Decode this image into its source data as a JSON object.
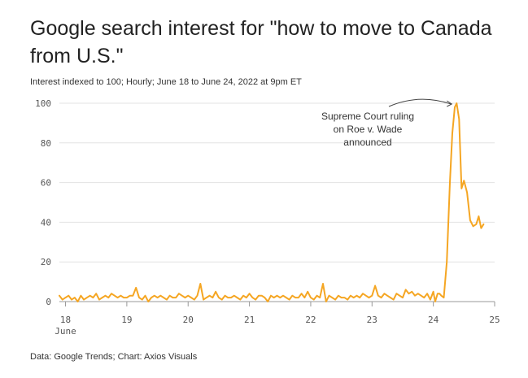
{
  "header": {
    "title": "Google search interest for \"how to move to Canada from U.S.\"",
    "subtitle": "Interest indexed to 100; Hourly; June 18 to June 24, 2022 at 9pm ET"
  },
  "footer": {
    "source": "Data: Google Trends; Chart: Axios Visuals"
  },
  "colors": {
    "line": "#f5a623",
    "grid": "#e3e3e3",
    "axis": "#999999"
  },
  "chart_data": {
    "type": "line",
    "title": "Google search interest for \"how to move to Canada from U.S.\"",
    "subtitle": "Interest indexed to 100; Hourly; June 18 to June 24, 2022 at 9pm ET",
    "xlabel": "",
    "ylabel": "",
    "xlim": [
      17.9,
      25
    ],
    "ylim": [
      0,
      100
    ],
    "grid": true,
    "y_ticks": [
      0,
      20,
      40,
      60,
      80,
      100
    ],
    "x_ticks": [
      {
        "value": 18,
        "label": "18",
        "sublabel": "June"
      },
      {
        "value": 19,
        "label": "19"
      },
      {
        "value": 20,
        "label": "20"
      },
      {
        "value": 21,
        "label": "21"
      },
      {
        "value": 22,
        "label": "22"
      },
      {
        "value": 23,
        "label": "23"
      },
      {
        "value": 24,
        "label": "24"
      },
      {
        "value": 25,
        "label": "25"
      }
    ],
    "series": [
      {
        "values": [
          [
            17.9,
            3
          ],
          [
            17.95,
            1
          ],
          [
            18.0,
            2
          ],
          [
            18.05,
            3
          ],
          [
            18.1,
            1
          ],
          [
            18.15,
            2
          ],
          [
            18.2,
            0
          ],
          [
            18.25,
            3
          ],
          [
            18.3,
            1
          ],
          [
            18.35,
            2
          ],
          [
            18.4,
            3
          ],
          [
            18.45,
            2
          ],
          [
            18.5,
            4
          ],
          [
            18.55,
            1
          ],
          [
            18.6,
            2
          ],
          [
            18.65,
            3
          ],
          [
            18.7,
            2
          ],
          [
            18.75,
            4
          ],
          [
            18.8,
            3
          ],
          [
            18.85,
            2
          ],
          [
            18.9,
            3
          ],
          [
            18.95,
            2
          ],
          [
            19.0,
            2
          ],
          [
            19.05,
            3
          ],
          [
            19.1,
            3
          ],
          [
            19.15,
            7
          ],
          [
            19.2,
            2
          ],
          [
            19.25,
            1
          ],
          [
            19.3,
            3
          ],
          [
            19.35,
            0
          ],
          [
            19.4,
            2
          ],
          [
            19.45,
            3
          ],
          [
            19.5,
            2
          ],
          [
            19.55,
            3
          ],
          [
            19.6,
            2
          ],
          [
            19.65,
            1
          ],
          [
            19.7,
            3
          ],
          [
            19.75,
            2
          ],
          [
            19.8,
            2
          ],
          [
            19.85,
            4
          ],
          [
            19.9,
            3
          ],
          [
            19.95,
            2
          ],
          [
            20.0,
            3
          ],
          [
            20.05,
            2
          ],
          [
            20.1,
            1
          ],
          [
            20.15,
            3
          ],
          [
            20.2,
            9
          ],
          [
            20.25,
            1
          ],
          [
            20.3,
            2
          ],
          [
            20.35,
            3
          ],
          [
            20.4,
            2
          ],
          [
            20.45,
            5
          ],
          [
            20.5,
            2
          ],
          [
            20.55,
            1
          ],
          [
            20.6,
            3
          ],
          [
            20.65,
            2
          ],
          [
            20.7,
            2
          ],
          [
            20.75,
            3
          ],
          [
            20.8,
            2
          ],
          [
            20.85,
            1
          ],
          [
            20.9,
            3
          ],
          [
            20.95,
            2
          ],
          [
            21.0,
            4
          ],
          [
            21.05,
            2
          ],
          [
            21.1,
            1
          ],
          [
            21.15,
            3
          ],
          [
            21.2,
            3
          ],
          [
            21.25,
            2
          ],
          [
            21.3,
            0
          ],
          [
            21.35,
            3
          ],
          [
            21.4,
            2
          ],
          [
            21.45,
            3
          ],
          [
            21.5,
            2
          ],
          [
            21.55,
            3
          ],
          [
            21.6,
            2
          ],
          [
            21.65,
            1
          ],
          [
            21.7,
            3
          ],
          [
            21.75,
            2
          ],
          [
            21.8,
            2
          ],
          [
            21.85,
            4
          ],
          [
            21.9,
            2
          ],
          [
            21.95,
            5
          ],
          [
            22.0,
            2
          ],
          [
            22.05,
            1
          ],
          [
            22.1,
            3
          ],
          [
            22.15,
            2
          ],
          [
            22.2,
            9
          ],
          [
            22.25,
            0
          ],
          [
            22.3,
            3
          ],
          [
            22.35,
            2
          ],
          [
            22.4,
            1
          ],
          [
            22.45,
            3
          ],
          [
            22.5,
            2
          ],
          [
            22.55,
            2
          ],
          [
            22.6,
            1
          ],
          [
            22.65,
            3
          ],
          [
            22.7,
            2
          ],
          [
            22.75,
            3
          ],
          [
            22.8,
            2
          ],
          [
            22.85,
            4
          ],
          [
            22.9,
            3
          ],
          [
            22.95,
            2
          ],
          [
            23.0,
            3
          ],
          [
            23.05,
            8
          ],
          [
            23.1,
            3
          ],
          [
            23.15,
            2
          ],
          [
            23.2,
            4
          ],
          [
            23.25,
            3
          ],
          [
            23.3,
            2
          ],
          [
            23.35,
            1
          ],
          [
            23.4,
            4
          ],
          [
            23.45,
            3
          ],
          [
            23.5,
            2
          ],
          [
            23.55,
            6
          ],
          [
            23.6,
            4
          ],
          [
            23.65,
            5
          ],
          [
            23.7,
            3
          ],
          [
            23.75,
            4
          ],
          [
            23.8,
            3
          ],
          [
            23.85,
            2
          ],
          [
            23.9,
            4
          ],
          [
            23.95,
            1
          ],
          [
            24.0,
            5
          ],
          [
            24.03,
            0
          ],
          [
            24.07,
            4
          ],
          [
            24.1,
            4
          ],
          [
            24.13,
            3
          ],
          [
            24.17,
            2
          ],
          [
            24.22,
            20
          ],
          [
            24.27,
            60
          ],
          [
            24.31,
            85
          ],
          [
            24.35,
            98
          ],
          [
            24.38,
            100
          ],
          [
            24.42,
            92
          ],
          [
            24.46,
            57
          ],
          [
            24.5,
            61
          ],
          [
            24.55,
            55
          ],
          [
            24.6,
            41
          ],
          [
            24.65,
            38
          ],
          [
            24.7,
            39
          ],
          [
            24.74,
            43
          ],
          [
            24.78,
            37
          ],
          [
            24.82,
            39
          ]
        ]
      }
    ],
    "annotations": [
      {
        "lines": [
          "Supreme Court ruling",
          "on Roe v. Wade",
          "announced"
        ],
        "x": 24.38,
        "y": 100
      }
    ]
  }
}
